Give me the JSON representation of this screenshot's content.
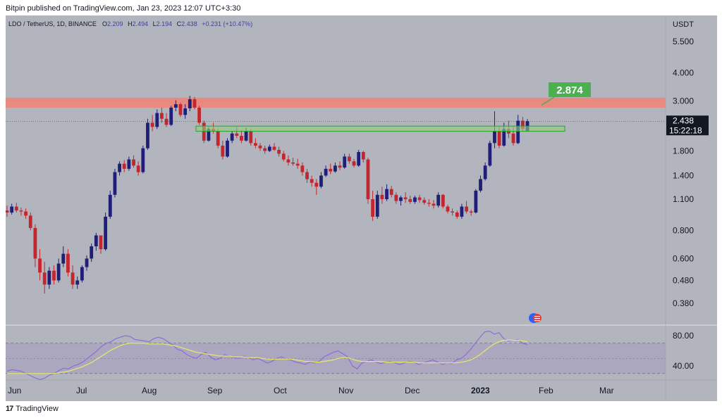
{
  "header": {
    "publisher": "Bitpin published on TradingView.com, Jan 23, 2023 12:07 UTC+3:30"
  },
  "footer": {
    "logo_text": "TradingView",
    "logo_mark": "17"
  },
  "chart_data": {
    "type": "candlestick",
    "symbol": "LDO / TetherUS, 1D, BINANCE",
    "ohlc": {
      "open_label": "O",
      "open": "2.209",
      "high_label": "H",
      "high": "2.494",
      "low_label": "L",
      "low": "2.194",
      "close_label": "C",
      "close": "2.438",
      "change": "+0.231 (+10.47%)"
    },
    "currency": "USDT",
    "scale": "log",
    "price_ticks": [
      "5.500",
      "4.000",
      "3.000",
      "1.800",
      "1.400",
      "1.100",
      "0.800",
      "0.600",
      "0.480",
      "0.380"
    ],
    "last_price": "2.438",
    "countdown": "15:22:18",
    "target_label": "2.874",
    "resistance_zone": [
      2.8,
      3.1
    ],
    "support_zone": [
      2.2,
      2.32
    ],
    "months": [
      "Jun",
      "Jul",
      "Aug",
      "Sep",
      "Oct",
      "Nov",
      "Dec",
      "2023",
      "Feb",
      "Mar"
    ],
    "rsi": {
      "ticks": [
        "80.00",
        "40.00"
      ],
      "upper_band": 70,
      "lower_band": 30,
      "values": [
        33,
        35,
        34,
        33,
        30,
        27,
        24,
        22,
        24,
        28,
        30,
        34,
        37,
        36,
        40,
        42,
        45,
        50,
        55,
        60,
        66,
        70,
        72,
        76,
        78,
        80,
        79,
        75,
        74,
        73,
        72,
        76,
        78,
        76,
        72,
        68,
        62,
        60,
        55,
        52,
        50,
        55,
        58,
        52,
        48,
        50,
        55,
        53,
        51,
        50,
        53,
        51,
        48,
        50,
        47,
        44,
        46,
        50,
        52,
        49,
        48,
        45,
        44,
        42,
        45,
        44,
        46,
        52,
        55,
        58,
        60,
        56,
        52,
        40,
        36,
        44,
        46,
        48,
        45,
        43,
        45,
        46,
        44,
        42,
        44,
        46,
        45,
        42,
        44,
        46,
        48,
        45,
        42,
        44,
        43,
        48,
        50,
        55,
        62,
        70,
        78,
        85,
        86,
        82,
        84,
        76,
        73,
        74,
        75,
        70,
        68
      ],
      "ma_values": [
        30,
        30,
        30,
        30,
        30,
        30,
        30,
        30,
        30,
        30,
        30,
        31,
        32,
        33,
        35,
        37,
        39,
        42,
        45,
        49,
        53,
        57,
        61,
        64,
        67,
        69,
        70,
        70,
        70,
        70,
        69,
        69,
        69,
        69,
        68,
        67,
        66,
        64,
        62,
        60,
        58,
        57,
        56,
        55,
        54,
        53,
        53,
        53,
        52,
        52,
        52,
        51,
        51,
        51,
        50,
        49,
        49,
        49,
        49,
        49,
        49,
        48,
        47,
        46,
        46,
        45,
        45,
        46,
        47,
        48,
        50,
        51,
        51,
        49,
        47,
        46,
        46,
        46,
        46,
        46,
        45,
        45,
        45,
        45,
        45,
        45,
        45,
        44,
        44,
        44,
        44,
        44,
        44,
        44,
        44,
        44,
        45,
        46,
        48,
        51,
        55,
        60,
        65,
        69,
        72,
        74,
        74,
        74,
        74,
        73,
        72
      ]
    },
    "candles": [
      [
        0.98,
        1.03,
        0.92,
        0.96
      ],
      [
        0.96,
        1.05,
        0.94,
        1.02
      ],
      [
        1.02,
        1.06,
        0.96,
        0.98
      ],
      [
        0.98,
        1.01,
        0.93,
        0.97
      ],
      [
        0.97,
        1.0,
        0.9,
        0.93
      ],
      [
        0.93,
        0.96,
        0.8,
        0.82
      ],
      [
        0.82,
        0.85,
        0.55,
        0.6
      ],
      [
        0.6,
        0.66,
        0.48,
        0.52
      ],
      [
        0.52,
        0.58,
        0.42,
        0.46
      ],
      [
        0.46,
        0.55,
        0.44,
        0.53
      ],
      [
        0.53,
        0.56,
        0.46,
        0.48
      ],
      [
        0.48,
        0.6,
        0.47,
        0.57
      ],
      [
        0.57,
        0.68,
        0.55,
        0.63
      ],
      [
        0.63,
        0.66,
        0.5,
        0.52
      ],
      [
        0.52,
        0.56,
        0.44,
        0.46
      ],
      [
        0.46,
        0.5,
        0.44,
        0.48
      ],
      [
        0.48,
        0.56,
        0.47,
        0.55
      ],
      [
        0.55,
        0.62,
        0.53,
        0.6
      ],
      [
        0.6,
        0.7,
        0.58,
        0.68
      ],
      [
        0.68,
        0.78,
        0.65,
        0.76
      ],
      [
        0.76,
        0.74,
        0.63,
        0.66
      ],
      [
        0.66,
        0.96,
        0.65,
        0.92
      ],
      [
        0.92,
        1.2,
        0.9,
        1.15
      ],
      [
        1.15,
        1.5,
        1.12,
        1.45
      ],
      [
        1.45,
        1.62,
        1.4,
        1.58
      ],
      [
        1.58,
        1.64,
        1.45,
        1.5
      ],
      [
        1.5,
        1.7,
        1.47,
        1.65
      ],
      [
        1.65,
        1.72,
        1.52,
        1.55
      ],
      [
        1.55,
        1.62,
        1.4,
        1.45
      ],
      [
        1.45,
        1.9,
        1.43,
        1.85
      ],
      [
        1.85,
        2.5,
        1.82,
        2.4
      ],
      [
        2.4,
        2.6,
        2.2,
        2.3
      ],
      [
        2.3,
        2.75,
        2.25,
        2.65
      ],
      [
        2.65,
        2.8,
        2.4,
        2.5
      ],
      [
        2.5,
        2.65,
        2.3,
        2.35
      ],
      [
        2.35,
        2.85,
        2.32,
        2.8
      ],
      [
        2.8,
        3.02,
        2.7,
        2.9
      ],
      [
        2.9,
        2.95,
        2.55,
        2.6
      ],
      [
        2.6,
        2.9,
        2.5,
        2.78
      ],
      [
        2.78,
        3.16,
        2.7,
        3.05
      ],
      [
        3.05,
        3.12,
        2.75,
        2.8
      ],
      [
        2.8,
        2.85,
        2.35,
        2.4
      ],
      [
        2.4,
        2.45,
        1.95,
        2.0
      ],
      [
        2.0,
        2.3,
        1.98,
        2.25
      ],
      [
        2.25,
        2.4,
        2.15,
        2.2
      ],
      [
        2.2,
        2.25,
        1.85,
        1.9
      ],
      [
        1.9,
        2.0,
        1.65,
        1.7
      ],
      [
        1.7,
        2.05,
        1.68,
        2.0
      ],
      [
        2.0,
        2.2,
        1.95,
        2.15
      ],
      [
        2.15,
        2.3,
        2.05,
        2.1
      ],
      [
        2.1,
        2.22,
        1.95,
        2.0
      ],
      [
        2.0,
        2.28,
        1.98,
        2.2
      ],
      [
        2.2,
        2.25,
        1.9,
        1.95
      ],
      [
        1.95,
        2.05,
        1.85,
        1.9
      ],
      [
        1.9,
        1.95,
        1.8,
        1.85
      ],
      [
        1.85,
        1.9,
        1.75,
        1.8
      ],
      [
        1.8,
        1.92,
        1.78,
        1.88
      ],
      [
        1.88,
        1.95,
        1.8,
        1.82
      ],
      [
        1.82,
        1.88,
        1.7,
        1.75
      ],
      [
        1.75,
        1.8,
        1.62,
        1.65
      ],
      [
        1.65,
        1.72,
        1.55,
        1.6
      ],
      [
        1.6,
        1.68,
        1.55,
        1.58
      ],
      [
        1.58,
        1.66,
        1.5,
        1.55
      ],
      [
        1.55,
        1.6,
        1.4,
        1.45
      ],
      [
        1.45,
        1.5,
        1.3,
        1.35
      ],
      [
        1.35,
        1.4,
        1.25,
        1.3
      ],
      [
        1.3,
        1.35,
        1.15,
        1.25
      ],
      [
        1.25,
        1.45,
        1.23,
        1.4
      ],
      [
        1.4,
        1.55,
        1.38,
        1.5
      ],
      [
        1.5,
        1.58,
        1.42,
        1.46
      ],
      [
        1.46,
        1.6,
        1.44,
        1.55
      ],
      [
        1.55,
        1.62,
        1.48,
        1.52
      ],
      [
        1.52,
        1.75,
        1.5,
        1.7
      ],
      [
        1.7,
        1.75,
        1.58,
        1.62
      ],
      [
        1.62,
        1.66,
        1.52,
        1.55
      ],
      [
        1.55,
        1.82,
        1.53,
        1.78
      ],
      [
        1.78,
        1.8,
        1.6,
        1.65
      ],
      [
        1.65,
        1.68,
        1.05,
        1.1
      ],
      [
        1.1,
        1.2,
        0.88,
        0.92
      ],
      [
        0.92,
        1.2,
        0.9,
        1.15
      ],
      [
        1.15,
        1.25,
        1.05,
        1.1
      ],
      [
        1.1,
        1.28,
        1.08,
        1.22
      ],
      [
        1.22,
        1.26,
        1.12,
        1.15
      ],
      [
        1.15,
        1.18,
        1.05,
        1.08
      ],
      [
        1.08,
        1.14,
        1.03,
        1.12
      ],
      [
        1.12,
        1.18,
        1.06,
        1.1
      ],
      [
        1.1,
        1.14,
        1.05,
        1.07
      ],
      [
        1.07,
        1.14,
        1.05,
        1.12
      ],
      [
        1.12,
        1.15,
        1.06,
        1.09
      ],
      [
        1.09,
        1.12,
        1.04,
        1.06
      ],
      [
        1.06,
        1.1,
        1.02,
        1.05
      ],
      [
        1.05,
        1.09,
        1.0,
        1.03
      ],
      [
        1.03,
        1.18,
        1.01,
        1.15
      ],
      [
        1.15,
        1.16,
        1.0,
        1.02
      ],
      [
        1.02,
        1.04,
        0.95,
        0.97
      ],
      [
        0.97,
        1.0,
        0.93,
        0.96
      ],
      [
        0.96,
        0.98,
        0.9,
        0.92
      ],
      [
        0.92,
        1.05,
        0.9,
        1.02
      ],
      [
        1.02,
        1.08,
        0.95,
        0.97
      ],
      [
        0.97,
        0.99,
        0.93,
        0.96
      ],
      [
        0.96,
        1.22,
        0.95,
        1.2
      ],
      [
        1.2,
        1.4,
        1.18,
        1.35
      ],
      [
        1.35,
        1.6,
        1.33,
        1.55
      ],
      [
        1.55,
        2.0,
        1.53,
        1.95
      ],
      [
        1.95,
        2.7,
        1.85,
        2.2
      ],
      [
        2.2,
        2.3,
        1.85,
        1.9
      ],
      [
        1.9,
        2.4,
        1.88,
        2.25
      ],
      [
        2.25,
        2.45,
        2.05,
        2.15
      ],
      [
        2.15,
        2.3,
        1.9,
        1.95
      ],
      [
        1.95,
        2.6,
        1.93,
        2.45
      ],
      [
        2.45,
        2.55,
        2.2,
        2.25
      ],
      [
        2.209,
        2.494,
        2.194,
        2.438
      ]
    ]
  }
}
